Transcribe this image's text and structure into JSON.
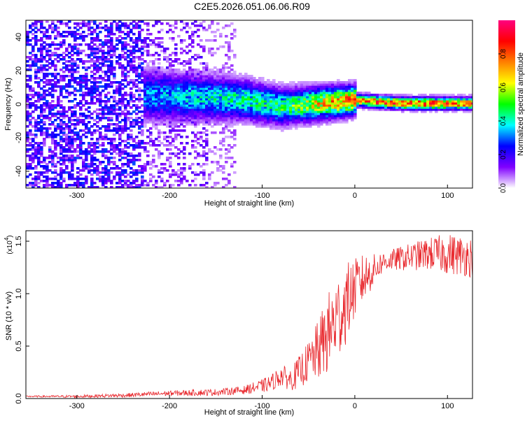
{
  "title": "C2E5.2026.051.06.06.R09",
  "chart_data": [
    {
      "type": "heatmap",
      "xlabel": "Height of straight line (km)",
      "ylabel": "Frequency (Hz)",
      "xlim": [
        -355,
        127
      ],
      "ylim": [
        -50,
        50
      ],
      "xticks": [
        -300,
        -200,
        -100,
        0,
        100
      ],
      "yticks": [
        -40,
        -20,
        0,
        20,
        40
      ],
      "colorbar": {
        "label": "Normalized spectral amplitude",
        "range": [
          0,
          1
        ],
        "ticks": [
          "0.0",
          "0.2",
          "0.4",
          "0.6",
          "0.8"
        ],
        "tick_values": [
          0,
          0.2,
          0.4,
          0.6,
          0.8
        ],
        "colors": [
          "#ffffff",
          "#8000ff",
          "#0000ff",
          "#00ffff",
          "#00ff00",
          "#ffff00",
          "#ff8000",
          "#ff0000",
          "#ff0080"
        ]
      },
      "ridge": {
        "x": [
          -230,
          -200,
          -150,
          -120,
          -100,
          -80,
          -60,
          -40,
          -20,
          0,
          20,
          50,
          80,
          110,
          127
        ],
        "center_hz": [
          5,
          4,
          3,
          2,
          0,
          -2,
          -1,
          0,
          1,
          2,
          1,
          0,
          0,
          0,
          0
        ],
        "peak_amplitude": [
          0.35,
          0.4,
          0.45,
          0.5,
          0.5,
          0.55,
          0.6,
          0.75,
          0.85,
          0.9,
          0.95,
          0.95,
          0.95,
          0.9,
          0.9
        ]
      },
      "noise_region_x": [
        -355,
        -130
      ]
    },
    {
      "type": "line",
      "xlabel": "Height of straight line (km)",
      "ylabel": "SNR (10 * v/v)",
      "multiplier": "(x10",
      "multiplier_exp": "4",
      "multiplier_close": ")",
      "xlim": [
        -355,
        127
      ],
      "ylim": [
        0,
        1.6
      ],
      "xticks": [
        -300,
        -200,
        -100,
        0,
        100
      ],
      "yticks": [
        "0.0",
        "0.5",
        "1.0",
        "1.5"
      ],
      "ytick_values": [
        0,
        0.5,
        1.0,
        1.5
      ],
      "series": [
        {
          "color": "#e8262b",
          "x": [
            -355,
            -300,
            -250,
            -200,
            -150,
            -120,
            -100,
            -90,
            -80,
            -70,
            -60,
            -50,
            -40,
            -30,
            -20,
            -10,
            0,
            10,
            20,
            30,
            40,
            60,
            80,
            100,
            127
          ],
          "mean": [
            0.02,
            0.02,
            0.03,
            0.05,
            0.06,
            0.08,
            0.12,
            0.15,
            0.22,
            0.18,
            0.25,
            0.35,
            0.45,
            0.6,
            0.75,
            0.9,
            1.05,
            1.15,
            1.22,
            1.3,
            1.32,
            1.35,
            1.38,
            1.38,
            1.35
          ],
          "spread": [
            0.005,
            0.01,
            0.015,
            0.02,
            0.025,
            0.03,
            0.05,
            0.06,
            0.08,
            0.08,
            0.12,
            0.15,
            0.22,
            0.3,
            0.32,
            0.3,
            0.22,
            0.18,
            0.12,
            0.08,
            0.08,
            0.1,
            0.12,
            0.15,
            0.15
          ]
        }
      ]
    }
  ]
}
